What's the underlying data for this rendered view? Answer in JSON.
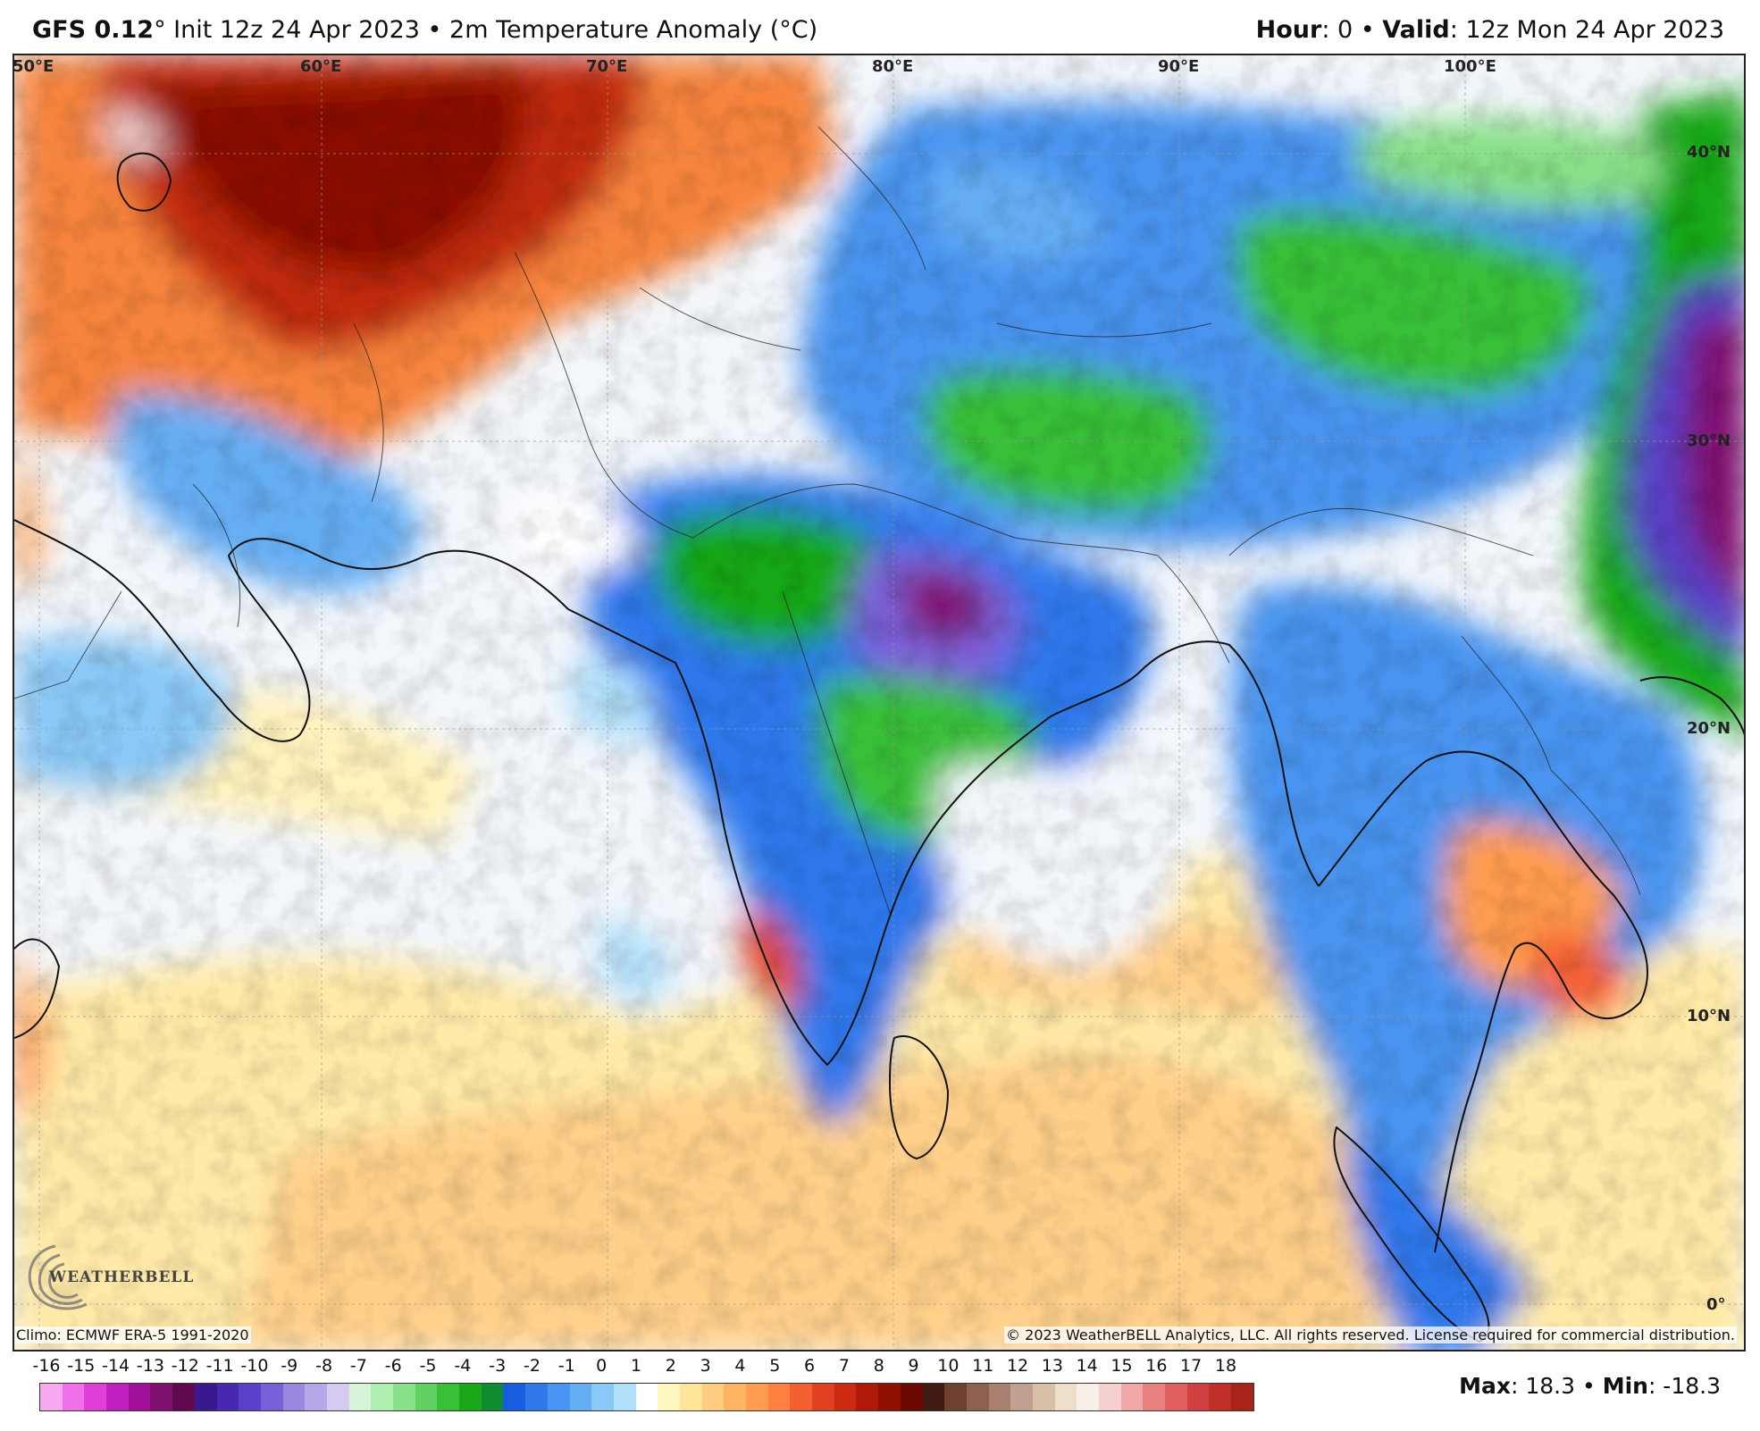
{
  "header": {
    "model": "GFS 0.12",
    "deg": "°",
    "init": " Init 12z 24 Apr 2023 • 2m Temperature Anomaly (°C)",
    "hour_label": "Hour",
    "hour_value": ": 0 • ",
    "valid_label": "Valid",
    "valid_value": ": 12z Mon 24 Apr 2023"
  },
  "longitude_labels": [
    "50°E",
    "60°E",
    "70°E",
    "80°E",
    "90°E",
    "100°E"
  ],
  "latitude_labels": [
    "40°N",
    "30°N",
    "20°N",
    "10°N",
    "0°"
  ],
  "footer": {
    "climo": "Climo: ECMWF ERA-5 1991-2020",
    "copyright": "© 2023 WeatherBELL Analytics, LLC. All rights reserved. License required for commercial distribution.",
    "logo_text": "WEATHERBELL"
  },
  "legend": {
    "ticks": [
      "-16",
      "-15",
      "-14",
      "-13",
      "-12",
      "-11",
      "-10",
      "-9",
      "-8",
      "-7",
      "-6",
      "-5",
      "-4",
      "-3",
      "-2",
      "-1",
      "0",
      "1",
      "2",
      "3",
      "4",
      "5",
      "6",
      "7",
      "8",
      "9",
      "10",
      "11",
      "12",
      "13",
      "14",
      "15",
      "16",
      "17",
      "18"
    ],
    "colors": [
      "#f7a8f0",
      "#f070e8",
      "#e040d8",
      "#c020c0",
      "#a01098",
      "#801070",
      "#600850",
      "#3a1890",
      "#4828b0",
      "#5a40c8",
      "#7a60d8",
      "#9a88e0",
      "#b8a8ea",
      "#d6ccf2",
      "#d8f4d8",
      "#b0eeb0",
      "#88e088",
      "#60d060",
      "#38c038",
      "#18a818",
      "#108c30",
      "#1a5ce0",
      "#2e78ec",
      "#4894f0",
      "#66aef4",
      "#8ac8f6",
      "#b2e0fa",
      "#ffffff",
      "#fff6c0",
      "#ffe49a",
      "#ffcc80",
      "#ffb464",
      "#ff9c50",
      "#ff8040",
      "#f46030",
      "#e04020",
      "#cc2a10",
      "#b01808",
      "#901000",
      "#6a0800",
      "#3e1a12",
      "#6e4030",
      "#8e6050",
      "#a88070",
      "#c0a090",
      "#d8c0a8",
      "#ece0c8",
      "#f8f0e8",
      "#f6d0d0",
      "#f0a8a8",
      "#e88080",
      "#e06060",
      "#d04040",
      "#c03028",
      "#a82418"
    ]
  },
  "maxmin": {
    "max_label": "Max",
    "max_value": ": 18.3 • ",
    "min_label": "Min",
    "min_value": ": -18.3"
  }
}
